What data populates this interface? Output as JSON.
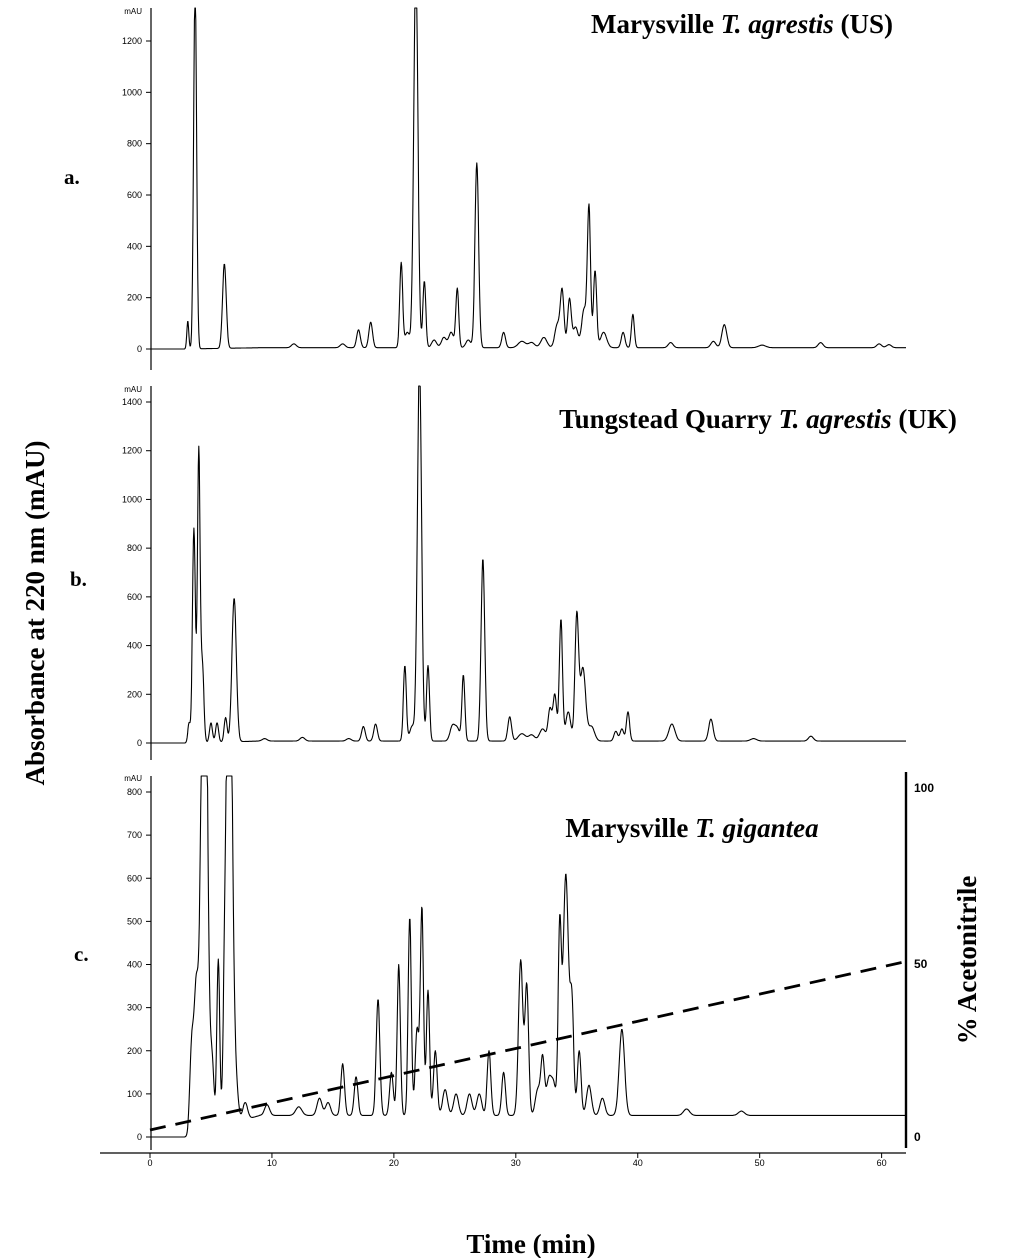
{
  "figure": {
    "ylabel": "Absorbance at 220 nm (mAU)",
    "xlabel": "Time (min)",
    "right_axis_label": "% Acetonitrile",
    "right_axis_ticks": [
      "100",
      "50",
      "0"
    ]
  },
  "chart_data": [
    {
      "type": "line",
      "panel_label": "a.",
      "title": {
        "prefix": "Marysville ",
        "italic": "T. agrestis",
        "suffix": " (US)"
      },
      "unit_label": "mAU",
      "ylim": [
        0,
        1300
      ],
      "yticks": [
        0,
        200,
        400,
        600,
        800,
        1000,
        1200
      ],
      "xlim": [
        0,
        62
      ],
      "grid": false,
      "baseline": 0,
      "tail_value": 5,
      "peaks": [
        [
          3.1,
          110,
          0.08
        ],
        [
          3.7,
          1450,
          0.12
        ],
        [
          6.1,
          330,
          0.15
        ],
        [
          11.8,
          15,
          0.2
        ],
        [
          15.8,
          15,
          0.2
        ],
        [
          17.1,
          70,
          0.15
        ],
        [
          18.1,
          100,
          0.15
        ],
        [
          20.6,
          330,
          0.12
        ],
        [
          21.1,
          60,
          0.2
        ],
        [
          21.8,
          1500,
          0.17
        ],
        [
          22.5,
          260,
          0.12
        ],
        [
          23.3,
          30,
          0.2
        ],
        [
          24.1,
          40,
          0.2
        ],
        [
          24.7,
          60,
          0.2
        ],
        [
          25.2,
          230,
          0.12
        ],
        [
          26.1,
          30,
          0.2
        ],
        [
          26.8,
          720,
          0.15
        ],
        [
          29.0,
          60,
          0.15
        ],
        [
          30.5,
          25,
          0.3
        ],
        [
          31.3,
          20,
          0.25
        ],
        [
          32.3,
          40,
          0.25
        ],
        [
          33.4,
          90,
          0.2
        ],
        [
          33.8,
          220,
          0.15
        ],
        [
          34.4,
          190,
          0.15
        ],
        [
          34.9,
          80,
          0.2
        ],
        [
          35.6,
          150,
          0.2
        ],
        [
          36.0,
          540,
          0.13
        ],
        [
          36.5,
          300,
          0.13
        ],
        [
          37.2,
          60,
          0.25
        ],
        [
          38.8,
          60,
          0.15
        ],
        [
          39.6,
          130,
          0.12
        ],
        [
          42.7,
          20,
          0.2
        ],
        [
          46.2,
          25,
          0.2
        ],
        [
          47.1,
          90,
          0.2
        ],
        [
          50.2,
          10,
          0.3
        ],
        [
          55.0,
          20,
          0.2
        ],
        [
          59.8,
          15,
          0.2
        ],
        [
          60.6,
          12,
          0.2
        ]
      ]
    },
    {
      "type": "line",
      "panel_label": "b.",
      "title": {
        "prefix": "Tungstead Quarry ",
        "italic": "T. agrestis",
        "suffix": " (UK)"
      },
      "unit_label": "mAU",
      "ylim": [
        0,
        1450
      ],
      "yticks": [
        0,
        200,
        400,
        600,
        800,
        1000,
        1200,
        1400
      ],
      "xlim": [
        0,
        62
      ],
      "grid": false,
      "baseline": 0,
      "tail_value": 8,
      "peaks": [
        [
          3.2,
          80,
          0.1
        ],
        [
          3.6,
          880,
          0.12
        ],
        [
          4.0,
          1200,
          0.11
        ],
        [
          4.3,
          310,
          0.12
        ],
        [
          5.0,
          80,
          0.12
        ],
        [
          5.5,
          80,
          0.12
        ],
        [
          6.2,
          100,
          0.12
        ],
        [
          6.9,
          590,
          0.18
        ],
        [
          9.4,
          10,
          0.2
        ],
        [
          12.5,
          15,
          0.2
        ],
        [
          16.3,
          10,
          0.2
        ],
        [
          17.5,
          60,
          0.15
        ],
        [
          18.5,
          70,
          0.15
        ],
        [
          20.9,
          310,
          0.12
        ],
        [
          21.5,
          60,
          0.2
        ],
        [
          22.1,
          1550,
          0.17
        ],
        [
          22.8,
          310,
          0.12
        ],
        [
          24.8,
          60,
          0.2
        ],
        [
          25.2,
          50,
          0.2
        ],
        [
          25.7,
          270,
          0.12
        ],
        [
          27.3,
          750,
          0.15
        ],
        [
          29.5,
          100,
          0.15
        ],
        [
          30.5,
          30,
          0.3
        ],
        [
          31.3,
          25,
          0.25
        ],
        [
          32.2,
          50,
          0.25
        ],
        [
          32.8,
          130,
          0.15
        ],
        [
          33.2,
          190,
          0.15
        ],
        [
          33.7,
          500,
          0.13
        ],
        [
          34.3,
          120,
          0.2
        ],
        [
          35.0,
          510,
          0.15
        ],
        [
          35.5,
          300,
          0.22
        ],
        [
          36.2,
          60,
          0.25
        ],
        [
          38.2,
          40,
          0.15
        ],
        [
          38.7,
          50,
          0.15
        ],
        [
          39.2,
          120,
          0.13
        ],
        [
          42.8,
          70,
          0.25
        ],
        [
          46.0,
          90,
          0.18
        ],
        [
          49.5,
          10,
          0.25
        ],
        [
          54.2,
          20,
          0.2
        ]
      ]
    },
    {
      "type": "line",
      "panel_label": "c.",
      "title": {
        "prefix": "Marysville ",
        "italic": "T. gigantea",
        "suffix": ""
      },
      "unit_label": "mAU",
      "ylim": [
        0,
        820
      ],
      "yticks": [
        0,
        100,
        200,
        300,
        400,
        500,
        600,
        700,
        800
      ],
      "xlim": [
        0,
        62
      ],
      "xticks": [
        0,
        10,
        20,
        30,
        40,
        50,
        60
      ],
      "grid": false,
      "baseline": 0,
      "tail_value": 50,
      "peaks": [
        [
          3.4,
          180,
          0.15
        ],
        [
          3.8,
          350,
          0.2
        ],
        [
          4.2,
          300,
          0.15
        ],
        [
          4.5,
          1300,
          0.22
        ],
        [
          5.1,
          150,
          0.15
        ],
        [
          5.6,
          390,
          0.12
        ],
        [
          6.1,
          200,
          0.12
        ],
        [
          6.5,
          1400,
          0.22
        ],
        [
          7.0,
          100,
          0.2
        ],
        [
          7.8,
          40,
          0.2
        ],
        [
          9.6,
          25,
          0.2
        ],
        [
          12.2,
          20,
          0.25
        ],
        [
          13.9,
          40,
          0.2
        ],
        [
          14.6,
          30,
          0.2
        ],
        [
          15.8,
          120,
          0.15
        ],
        [
          16.9,
          90,
          0.15
        ],
        [
          18.7,
          270,
          0.15
        ],
        [
          19.8,
          100,
          0.15
        ],
        [
          20.4,
          350,
          0.13
        ],
        [
          21.3,
          460,
          0.13
        ],
        [
          21.9,
          200,
          0.15
        ],
        [
          22.3,
          480,
          0.13
        ],
        [
          22.8,
          290,
          0.13
        ],
        [
          23.4,
          150,
          0.15
        ],
        [
          24.2,
          60,
          0.2
        ],
        [
          25.1,
          50,
          0.2
        ],
        [
          26.2,
          50,
          0.2
        ],
        [
          27.0,
          50,
          0.2
        ],
        [
          27.8,
          150,
          0.15
        ],
        [
          29.0,
          100,
          0.15
        ],
        [
          30.4,
          360,
          0.18
        ],
        [
          30.9,
          300,
          0.15
        ],
        [
          31.8,
          60,
          0.2
        ],
        [
          32.2,
          130,
          0.15
        ],
        [
          32.7,
          80,
          0.2
        ],
        [
          33.1,
          70,
          0.2
        ],
        [
          33.6,
          420,
          0.13
        ],
        [
          34.1,
          560,
          0.22
        ],
        [
          34.6,
          250,
          0.15
        ],
        [
          35.2,
          150,
          0.15
        ],
        [
          36.0,
          70,
          0.2
        ],
        [
          37.1,
          40,
          0.2
        ],
        [
          38.7,
          200,
          0.22
        ],
        [
          44.0,
          15,
          0.25
        ],
        [
          48.5,
          10,
          0.25
        ]
      ],
      "gradient": {
        "name": "% Acetonitrile",
        "x": [
          0,
          62
        ],
        "y": [
          2,
          50
        ],
        "ylim": [
          0,
          100
        ],
        "style": "dashed"
      }
    }
  ]
}
